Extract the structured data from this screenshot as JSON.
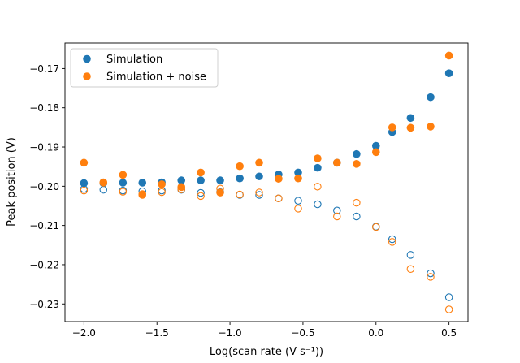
{
  "chart_data": {
    "type": "scatter",
    "xlabel": "Log(scan rate (V s⁻¹))",
    "ylabel": "Peak position (V)",
    "xlim": [
      -2.13,
      0.63
    ],
    "ylim": [
      -0.2345,
      -0.1635
    ],
    "xticks": [
      -2.0,
      -1.5,
      -1.0,
      -0.5,
      0.0,
      0.5
    ],
    "xtick_labels": [
      "−2.0",
      "−1.5",
      "−1.0",
      "−0.5",
      "0.0",
      "0.5"
    ],
    "yticks": [
      -0.17,
      -0.18,
      -0.19,
      -0.2,
      -0.21,
      -0.22,
      -0.23
    ],
    "ytick_labels": [
      "−0.17",
      "−0.18",
      "−0.19",
      "−0.20",
      "−0.21",
      "−0.22",
      "−0.23"
    ],
    "grid": false,
    "legend_position": "top-left",
    "x": [
      -2.0,
      -1.867,
      -1.733,
      -1.6,
      -1.467,
      -1.333,
      -1.2,
      -1.067,
      -0.933,
      -0.8,
      -0.667,
      -0.533,
      -0.4,
      -0.267,
      -0.133,
      0.0,
      0.111,
      0.237,
      0.374,
      0.5
    ],
    "series": [
      {
        "name": "Simulation",
        "color": "#1f77b4",
        "marker": "filled",
        "values": [
          -0.1992,
          -0.1992,
          -0.1991,
          -0.1991,
          -0.199,
          -0.1985,
          -0.1985,
          -0.1985,
          -0.198,
          -0.1975,
          -0.197,
          -0.1965,
          -0.1953,
          -0.194,
          -0.1918,
          -0.1897,
          -0.1862,
          -0.1826,
          -0.1773,
          -0.1712
        ]
      },
      {
        "name": "",
        "color": "#1f77b4",
        "marker": "hollow",
        "values": [
          -0.2007,
          -0.2009,
          -0.2011,
          -0.2013,
          -0.2011,
          -0.2009,
          -0.2017,
          -0.2015,
          -0.2022,
          -0.2022,
          -0.2031,
          -0.2037,
          -0.2046,
          -0.2062,
          -0.2077,
          -0.2103,
          -0.2135,
          -0.2175,
          -0.2222,
          -0.2283
        ]
      },
      {
        "name": "Simulation + noise",
        "color": "#ff7f0e",
        "marker": "filled",
        "values": [
          -0.194,
          -0.199,
          -0.1971,
          -0.202,
          -0.1995,
          -0.2002,
          -0.1965,
          -0.2016,
          -0.1949,
          -0.194,
          -0.1981,
          -0.198,
          -0.1929,
          -0.194,
          -0.1943,
          -0.1913,
          -0.185,
          -0.1851,
          -0.1848,
          -0.1667
        ]
      },
      {
        "name": "",
        "color": "#ff7f0e",
        "marker": "hollow",
        "values": [
          -0.2011,
          -0.1991,
          -0.2014,
          -0.2022,
          -0.2015,
          -0.2008,
          -0.2025,
          -0.2006,
          -0.2021,
          -0.2016,
          -0.2031,
          -0.2057,
          -0.2001,
          -0.2077,
          -0.2042,
          -0.2104,
          -0.2142,
          -0.2211,
          -0.2231,
          -0.2314
        ]
      }
    ]
  }
}
